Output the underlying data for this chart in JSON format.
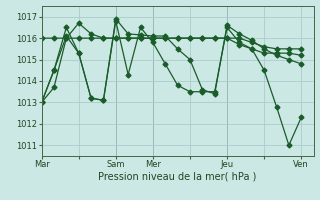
{
  "background_color": "#cce8e4",
  "grid_color": "#aacccc",
  "line_color": "#1a5c2a",
  "marker": "D",
  "markersize": 2.5,
  "linewidth": 0.9,
  "ylim": [
    1010.5,
    1017.5
  ],
  "yticks": [
    1011,
    1012,
    1013,
    1014,
    1015,
    1016,
    1017
  ],
  "xlabel": "Pression niveau de la mer( hPa )",
  "xlabel_fontsize": 7,
  "tick_fontsize": 6,
  "xtick_labels": [
    "Mar",
    "",
    "Sam",
    "Mer",
    "",
    "Jeu",
    "",
    "Ven"
  ],
  "xtick_positions": [
    0,
    3,
    6,
    9,
    12,
    15,
    18,
    21
  ],
  "vlines": [
    6,
    9,
    15
  ],
  "xlim": [
    0,
    22
  ],
  "series": [
    {
      "x": [
        0,
        1,
        2,
        3,
        4,
        5,
        6,
        7,
        8,
        9,
        10,
        11,
        12,
        13,
        14,
        15,
        16,
        17,
        18,
        19,
        20,
        21
      ],
      "y": [
        1016.0,
        1016.0,
        1016.0,
        1016.0,
        1016.0,
        1016.0,
        1016.0,
        1016.0,
        1016.0,
        1016.0,
        1016.0,
        1016.0,
        1016.0,
        1016.0,
        1016.0,
        1016.0,
        1016.0,
        1015.8,
        1015.6,
        1015.5,
        1015.5,
        1015.5
      ]
    },
    {
      "x": [
        0,
        1,
        2,
        3,
        4,
        5,
        6,
        7,
        8,
        9,
        10,
        11,
        12,
        13,
        14,
        15,
        16,
        17,
        18,
        19,
        20,
        21
      ],
      "y": [
        1013.0,
        1013.7,
        1016.0,
        1016.7,
        1016.2,
        1016.0,
        1016.0,
        1016.0,
        1016.0,
        1016.0,
        1016.0,
        1016.0,
        1016.0,
        1016.0,
        1016.0,
        1016.0,
        1015.7,
        1015.5,
        1015.3,
        1015.3,
        1015.3,
        1015.2
      ]
    },
    {
      "x": [
        0,
        1,
        2,
        3,
        4,
        5,
        6,
        7,
        8,
        9,
        10,
        11,
        12,
        13,
        14,
        15,
        16,
        17,
        18,
        19,
        20,
        21
      ],
      "y": [
        1013.0,
        1014.5,
        1016.5,
        1015.3,
        1013.2,
        1013.1,
        1016.9,
        1016.2,
        1016.15,
        1016.1,
        1016.1,
        1015.5,
        1015.0,
        1013.6,
        1013.4,
        1016.6,
        1016.2,
        1015.9,
        1015.5,
        1015.2,
        1015.0,
        1014.8
      ]
    },
    {
      "x": [
        0,
        1,
        2,
        3,
        4,
        5,
        6,
        7,
        8,
        9,
        10,
        11,
        12,
        13,
        14,
        15,
        16,
        17,
        18,
        19,
        20,
        21
      ],
      "y": [
        1013.0,
        1014.5,
        1016.1,
        1015.3,
        1013.2,
        1013.1,
        1016.8,
        1014.3,
        1016.5,
        1015.8,
        1014.8,
        1013.8,
        1013.5,
        1013.5,
        1013.5,
        1016.5,
        1015.8,
        1015.5,
        1014.5,
        1012.8,
        1011.0,
        1012.3
      ]
    }
  ]
}
